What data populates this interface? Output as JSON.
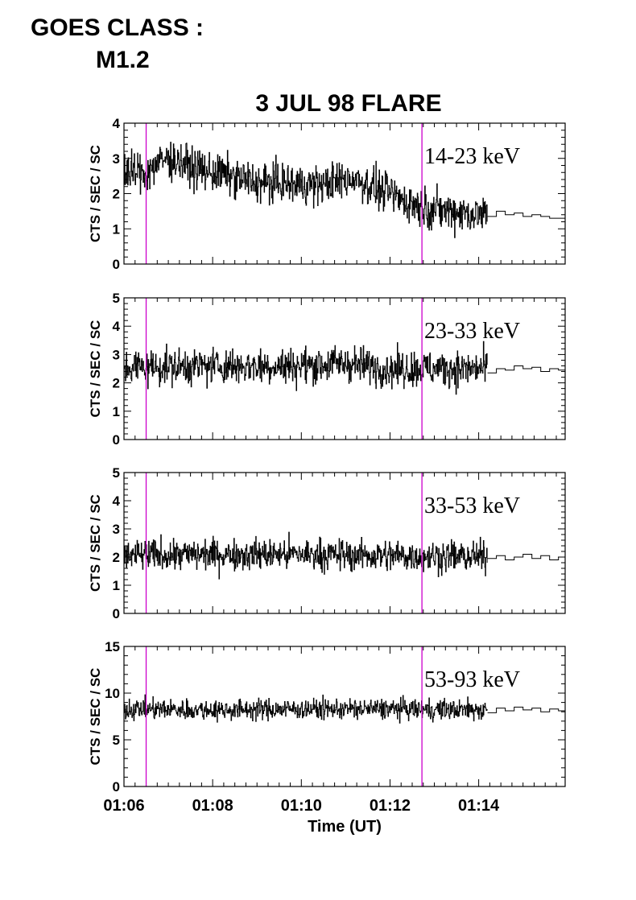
{
  "header": {
    "goes_label": "GOES CLASS :",
    "goes_value": "M1.2",
    "title": "3 JUL 98 FLARE"
  },
  "chart_data": {
    "type": "line",
    "title": "3 JUL 98 FLARE",
    "xlabel": "Time (UT)",
    "x_unit": "minutes UT",
    "xlim": [
      6.0,
      15.95
    ],
    "x_ticks": [
      6,
      8,
      10,
      12,
      14
    ],
    "x_tick_labels": [
      "01:06",
      "01:08",
      "01:10",
      "01:12",
      "01:14"
    ],
    "markers": [
      {
        "time": "01:06:30",
        "minutes": 6.5,
        "color": "#cc00cc"
      },
      {
        "time": "01:12:43",
        "minutes": 12.72,
        "color": "#cc00cc"
      }
    ],
    "panels": [
      {
        "band": "14-23 keV",
        "ylabel": "CTS / SEC / SC",
        "ylim": [
          0,
          4
        ],
        "y_ticks": [
          0,
          1,
          2,
          3,
          4
        ],
        "trend_x": [
          6.0,
          6.2,
          6.5,
          6.8,
          7.0,
          7.3,
          7.6,
          8.0,
          8.5,
          9.0,
          9.5,
          10.0,
          10.5,
          10.8,
          11.2,
          11.5,
          12.0,
          12.3,
          12.7,
          13.0,
          13.5,
          14.0,
          14.2
        ],
        "trend_y": [
          2.7,
          2.6,
          2.6,
          2.9,
          3.0,
          2.9,
          2.7,
          2.6,
          2.45,
          2.3,
          2.3,
          2.25,
          2.25,
          2.35,
          2.45,
          2.25,
          2.0,
          1.8,
          1.65,
          1.55,
          1.5,
          1.4,
          1.4
        ],
        "noise": 0.28,
        "dense_end": 14.2,
        "tail_x": [
          14.2,
          14.4,
          14.6,
          14.8,
          15.0,
          15.2,
          15.4,
          15.6,
          15.8,
          15.95
        ],
        "tail_y": [
          1.35,
          1.5,
          1.4,
          1.45,
          1.35,
          1.4,
          1.35,
          1.3,
          1.3,
          1.25
        ]
      },
      {
        "band": "23-33 keV",
        "ylabel": "CTS / SEC / SC",
        "ylim": [
          0,
          5
        ],
        "y_ticks": [
          0,
          1,
          2,
          3,
          4,
          5
        ],
        "trend_x": [
          6.0,
          8.0,
          10.0,
          11.0,
          12.0,
          13.0,
          14.2
        ],
        "trend_y": [
          2.55,
          2.6,
          2.6,
          2.7,
          2.5,
          2.5,
          2.5
        ],
        "noise": 0.32,
        "dense_end": 14.2,
        "tail_x": [
          14.2,
          14.4,
          14.6,
          14.8,
          15.0,
          15.2,
          15.4,
          15.6,
          15.8,
          15.95
        ],
        "tail_y": [
          2.35,
          2.5,
          2.45,
          2.6,
          2.5,
          2.55,
          2.4,
          2.5,
          2.45,
          2.4
        ]
      },
      {
        "band": "33-53 keV",
        "ylabel": "CTS / SEC / SC",
        "ylim": [
          0,
          5
        ],
        "y_ticks": [
          0,
          1,
          2,
          3,
          4,
          5
        ],
        "trend_x": [
          6.0,
          8.0,
          10.0,
          12.0,
          14.2
        ],
        "trend_y": [
          2.05,
          2.1,
          2.1,
          2.05,
          2.0
        ],
        "noise": 0.28,
        "dense_end": 14.2,
        "tail_x": [
          14.2,
          14.4,
          14.6,
          14.8,
          15.0,
          15.2,
          15.4,
          15.6,
          15.8,
          15.95
        ],
        "tail_y": [
          1.95,
          2.05,
          1.9,
          2.0,
          2.1,
          1.95,
          2.05,
          1.9,
          2.0,
          1.95
        ]
      },
      {
        "band": "53-93 keV",
        "ylabel": "CTS / SEC / SC",
        "ylim": [
          0,
          15
        ],
        "y_ticks": [
          0,
          5,
          10,
          15
        ],
        "trend_x": [
          6.0,
          8.0,
          10.0,
          12.0,
          14.2
        ],
        "trend_y": [
          8.3,
          8.2,
          8.3,
          8.3,
          8.2
        ],
        "noise": 0.55,
        "dense_end": 14.2,
        "tail_x": [
          14.2,
          14.4,
          14.6,
          14.8,
          15.0,
          15.2,
          15.4,
          15.6,
          15.8,
          15.95
        ],
        "tail_y": [
          7.9,
          8.4,
          8.1,
          8.5,
          8.2,
          8.4,
          8.0,
          8.3,
          8.1,
          8.2
        ]
      }
    ]
  }
}
